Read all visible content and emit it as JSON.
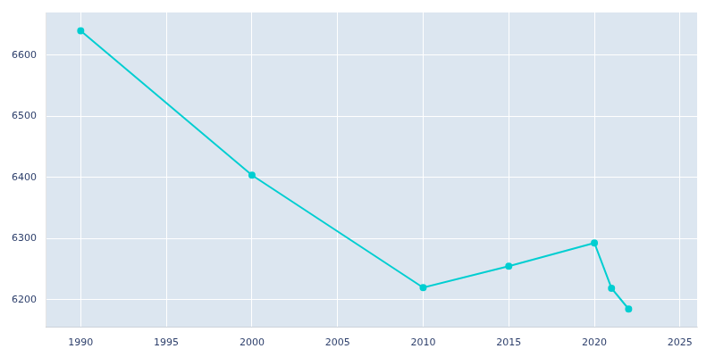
{
  "chart_data": {
    "type": "line",
    "x": [
      1990,
      2000,
      2010,
      2015,
      2020,
      2021,
      2022
    ],
    "values": [
      6640,
      6404,
      6220,
      6255,
      6293,
      6219,
      6185
    ],
    "color": "#00CED1",
    "marker": "circle",
    "xlim": [
      1988,
      2026
    ],
    "xticks": [
      1990,
      1995,
      2000,
      2005,
      2010,
      2015,
      2020,
      2025
    ],
    "ylim": [
      6155,
      6670
    ],
    "yticks": [
      6200,
      6300,
      6400,
      6500,
      6600
    ],
    "grid": true
  }
}
